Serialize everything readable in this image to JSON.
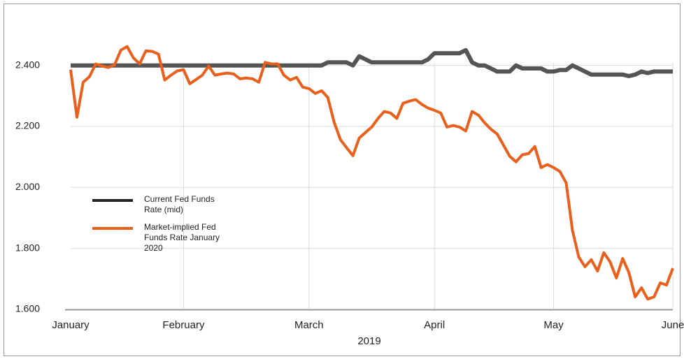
{
  "chart_data": {
    "type": "line",
    "xlabel": "2019",
    "categories": [
      "January",
      null,
      null,
      null,
      null,
      null,
      null,
      null,
      null,
      null,
      null,
      null,
      null,
      null,
      null,
      null,
      null,
      null,
      "February",
      null,
      null,
      null,
      null,
      null,
      null,
      null,
      null,
      null,
      null,
      null,
      null,
      null,
      null,
      null,
      null,
      null,
      null,
      null,
      "March",
      null,
      null,
      null,
      null,
      null,
      null,
      null,
      null,
      null,
      null,
      null,
      null,
      null,
      null,
      null,
      null,
      null,
      null,
      null,
      "April",
      null,
      null,
      null,
      null,
      null,
      null,
      null,
      null,
      null,
      null,
      null,
      null,
      null,
      null,
      null,
      null,
      null,
      null,
      "May",
      null,
      null,
      null,
      null,
      null,
      null,
      null,
      null,
      null,
      null,
      null,
      null,
      null,
      null,
      null,
      null,
      null,
      null,
      "June"
    ],
    "series": [
      {
        "name": "Current Fed Funds Rate (mid)",
        "color": "#555555",
        "values": [
          2.4,
          2.4,
          2.4,
          2.4,
          2.4,
          2.4,
          2.4,
          2.4,
          2.4,
          2.4,
          2.4,
          2.4,
          2.4,
          2.4,
          2.4,
          2.4,
          2.4,
          2.4,
          2.4,
          2.4,
          2.4,
          2.4,
          2.4,
          2.4,
          2.4,
          2.4,
          2.4,
          2.4,
          2.4,
          2.4,
          2.4,
          2.4,
          2.4,
          2.4,
          2.4,
          2.4,
          2.4,
          2.4,
          2.4,
          2.4,
          2.4,
          2.41,
          2.41,
          2.41,
          2.41,
          2.4,
          2.43,
          2.42,
          2.41,
          2.41,
          2.41,
          2.41,
          2.41,
          2.41,
          2.41,
          2.41,
          2.41,
          2.42,
          2.44,
          2.44,
          2.44,
          2.44,
          2.44,
          2.45,
          2.41,
          2.4,
          2.4,
          2.39,
          2.38,
          2.38,
          2.38,
          2.4,
          2.39,
          2.39,
          2.39,
          2.39,
          2.38,
          2.38,
          2.385,
          2.385,
          2.4,
          2.39,
          2.38,
          2.37,
          2.37,
          2.37,
          2.37,
          2.37,
          2.37,
          2.365,
          2.37,
          2.38,
          2.375,
          2.38,
          2.38,
          2.38,
          2.38
        ]
      },
      {
        "name": "Market-implied Fed Funds Rate January 2020",
        "color": "#e8601c",
        "values": [
          2.386,
          2.23,
          2.345,
          2.363,
          2.405,
          2.398,
          2.393,
          2.402,
          2.45,
          2.462,
          2.425,
          2.405,
          2.448,
          2.446,
          2.437,
          2.352,
          2.368,
          2.382,
          2.386,
          2.34,
          2.354,
          2.368,
          2.398,
          2.368,
          2.372,
          2.375,
          2.372,
          2.356,
          2.359,
          2.356,
          2.345,
          2.41,
          2.405,
          2.405,
          2.368,
          2.352,
          2.361,
          2.329,
          2.324,
          2.308,
          2.317,
          2.295,
          2.214,
          2.157,
          2.13,
          2.104,
          2.162,
          2.18,
          2.198,
          2.226,
          2.249,
          2.244,
          2.226,
          2.276,
          2.283,
          2.288,
          2.272,
          2.26,
          2.253,
          2.244,
          2.198,
          2.203,
          2.198,
          2.185,
          2.249,
          2.237,
          2.212,
          2.191,
          2.175,
          2.139,
          2.102,
          2.084,
          2.107,
          2.111,
          2.134,
          2.065,
          2.075,
          2.065,
          2.052,
          2.015,
          1.859,
          1.772,
          1.74,
          1.763,
          1.726,
          1.786,
          1.756,
          1.703,
          1.767,
          1.721,
          1.641,
          1.671,
          1.634,
          1.641,
          1.687,
          1.68,
          1.735
        ]
      }
    ],
    "ylim": [
      1.6,
      2.5
    ],
    "yticks": [
      {
        "value": 1.6,
        "label": "1.600"
      },
      {
        "value": 1.8,
        "label": "1.800"
      },
      {
        "value": 2.0,
        "label": "2.000"
      },
      {
        "value": 2.2,
        "label": "2.200"
      },
      {
        "value": 2.4,
        "label": "2.400"
      }
    ],
    "grid": true
  }
}
